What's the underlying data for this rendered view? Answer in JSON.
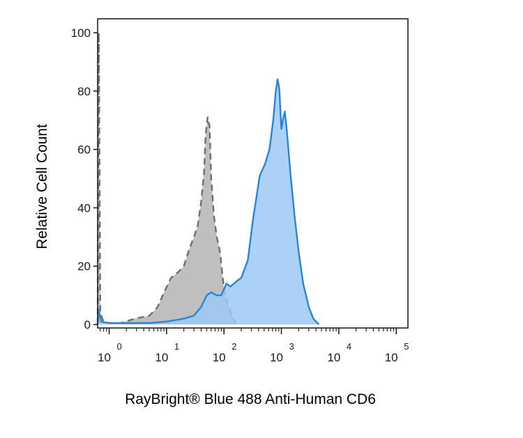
{
  "chart_data": {
    "type": "area",
    "title": "",
    "xlabel": "RayBright® Blue 488 Anti-Human CD6",
    "ylabel": "Relative Cell Count",
    "x_scale": "log",
    "xlim": [
      0.63,
      160000
    ],
    "ylim": [
      0,
      101
    ],
    "y_ticks": [
      0,
      20,
      40,
      60,
      80,
      100
    ],
    "x_ticks": [
      {
        "value": 1,
        "base": "10",
        "exp": "0"
      },
      {
        "value": 10,
        "base": "10",
        "exp": "1"
      },
      {
        "value": 100,
        "base": "10",
        "exp": "2"
      },
      {
        "value": 1000,
        "base": "10",
        "exp": "3"
      },
      {
        "value": 10000,
        "base": "10",
        "exp": "4"
      },
      {
        "value": 100000,
        "base": "10",
        "exp": "5"
      }
    ],
    "grid": false,
    "series": [
      {
        "color": "#bfbfbf",
        "line_color": "#6e6e6e",
        "line_style": "dashed",
        "points": [
          [
            0.63,
            0
          ],
          [
            0.66,
            100
          ],
          [
            0.7,
            4
          ],
          [
            0.8,
            1
          ],
          [
            1,
            0.5
          ],
          [
            1.6,
            0.5
          ],
          [
            2.8,
            2
          ],
          [
            5,
            3
          ],
          [
            7,
            6
          ],
          [
            9,
            11
          ],
          [
            12,
            16
          ],
          [
            16,
            18
          ],
          [
            20,
            20
          ],
          [
            25,
            26
          ],
          [
            30,
            30
          ],
          [
            35,
            34
          ],
          [
            40,
            42
          ],
          [
            45,
            52
          ],
          [
            48,
            65
          ],
          [
            52,
            71
          ],
          [
            56,
            68
          ],
          [
            60,
            50
          ],
          [
            67,
            37
          ],
          [
            75,
            30
          ],
          [
            85,
            25
          ],
          [
            100,
            12
          ],
          [
            120,
            6
          ],
          [
            145,
            2
          ],
          [
            170,
            0
          ]
        ]
      },
      {
        "color": "#9ec9f5",
        "line_color": "#2b83d8",
        "line_style": "solid",
        "points": [
          [
            0.63,
            0
          ],
          [
            0.66,
            5
          ],
          [
            0.72,
            1
          ],
          [
            1,
            0.5
          ],
          [
            5,
            0.5
          ],
          [
            10,
            1
          ],
          [
            20,
            2
          ],
          [
            30,
            3
          ],
          [
            40,
            6
          ],
          [
            50,
            10
          ],
          [
            60,
            11
          ],
          [
            75,
            10
          ],
          [
            90,
            10
          ],
          [
            110,
            14
          ],
          [
            130,
            13
          ],
          [
            170,
            15
          ],
          [
            200,
            16
          ],
          [
            260,
            22
          ],
          [
            320,
            36
          ],
          [
            420,
            51
          ],
          [
            520,
            55
          ],
          [
            620,
            60
          ],
          [
            720,
            70
          ],
          [
            800,
            80
          ],
          [
            860,
            84
          ],
          [
            920,
            81
          ],
          [
            1000,
            67
          ],
          [
            1080,
            71
          ],
          [
            1150,
            73
          ],
          [
            1250,
            66
          ],
          [
            1450,
            51
          ],
          [
            1700,
            37
          ],
          [
            2000,
            25
          ],
          [
            2400,
            14
          ],
          [
            3000,
            6
          ],
          [
            3600,
            2
          ],
          [
            4500,
            0
          ]
        ]
      }
    ]
  }
}
